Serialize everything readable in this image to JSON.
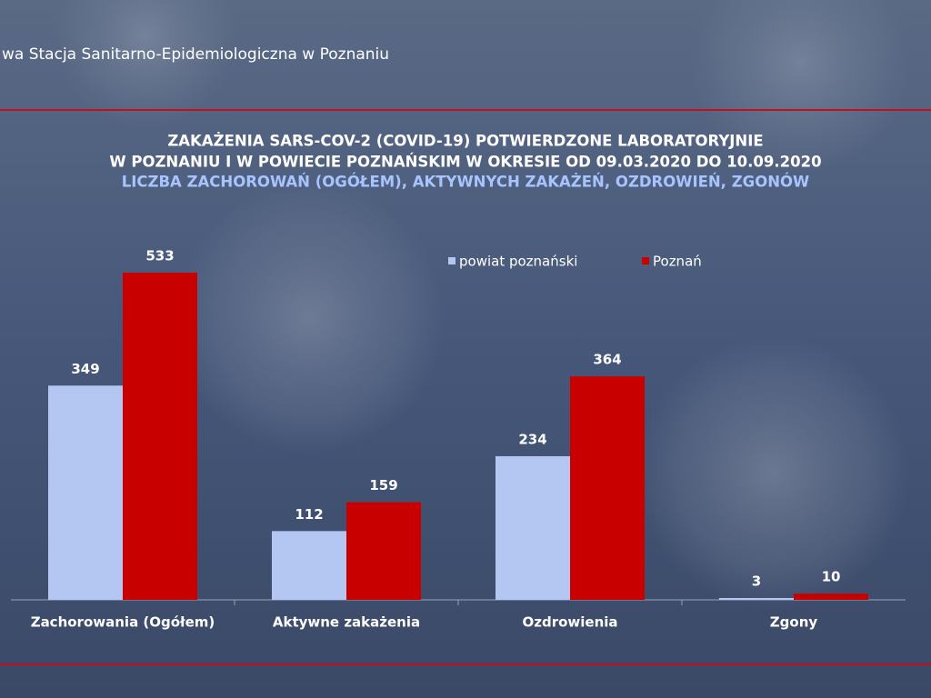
{
  "header": "wa Stacja Sanitarno-Epidemiologiczna w Poznaniu",
  "chart_data": {
    "type": "bar",
    "title": [
      "ZAKAŻENIA SARS-COV-2 (COVID-19) POTWIERDZONE LABORATORYJNIE",
      "W POZNANIU I W POWIECIE POZNAŃSKIM W OKRESIE OD 09.03.2020 DO 10.09.2020"
    ],
    "subtitle": "LICZBA ZACHOROWAŃ (OGÓŁEM), AKTYWNYCH ZAKAŻEŃ, OZDROWIEŃ, ZGONÓW",
    "categories": [
      "Zachorowania (Ogółem)",
      "Aktywne zakażenia",
      "Ozdrowienia",
      "Zgony"
    ],
    "series": [
      {
        "name": "powiat poznański",
        "color": "#b4c6f2",
        "values": [
          349,
          112,
          234,
          3
        ]
      },
      {
        "name": "Poznań",
        "color": "#c80000",
        "values": [
          533,
          159,
          364,
          10
        ]
      }
    ],
    "legend": "top-right"
  }
}
